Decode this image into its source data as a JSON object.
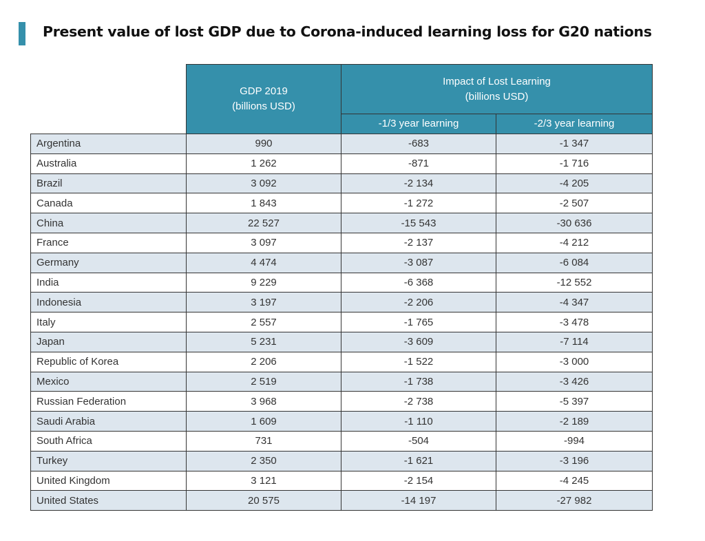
{
  "title": "Present value of lost GDP due to Corona-induced learning loss for G20 nations",
  "colors": {
    "header": "#3590ab",
    "row_alt": "#dde6ee",
    "accent_bar": "#3590ab"
  },
  "chart_data": {
    "type": "table",
    "headers": {
      "gdp": [
        "GDP 2019",
        "(billions USD)"
      ],
      "impact": [
        "Impact of Lost Learning",
        "(billions USD)"
      ],
      "sub": [
        "-1/3 year learning",
        "-2/3 year learning"
      ]
    },
    "rows": [
      [
        "Argentina",
        "990",
        "-683",
        "-1 347"
      ],
      [
        "Australia",
        "1 262",
        "-871",
        "-1 716"
      ],
      [
        "Brazil",
        "3 092",
        "-2 134",
        "-4 205"
      ],
      [
        "Canada",
        "1 843",
        "-1 272",
        "-2 507"
      ],
      [
        "China",
        "22 527",
        "-15 543",
        "-30 636"
      ],
      [
        "France",
        "3 097",
        "-2 137",
        "-4 212"
      ],
      [
        "Germany",
        "4 474",
        "-3 087",
        "-6 084"
      ],
      [
        "India",
        "9 229",
        "-6 368",
        "-12 552"
      ],
      [
        "Indonesia",
        "3 197",
        "-2 206",
        "-4 347"
      ],
      [
        "Italy",
        "2 557",
        "-1 765",
        "-3 478"
      ],
      [
        "Japan",
        "5 231",
        "-3 609",
        "-7 114"
      ],
      [
        "Republic of Korea",
        "2 206",
        "-1 522",
        "-3 000"
      ],
      [
        "Mexico",
        "2 519",
        "-1 738",
        "-3 426"
      ],
      [
        "Russian Federation",
        "3 968",
        "-2 738",
        "-5 397"
      ],
      [
        "Saudi Arabia",
        "1 609",
        "-1 110",
        "-2 189"
      ],
      [
        "South Africa",
        "731",
        "-504",
        "-994"
      ],
      [
        "Turkey",
        "2 350",
        "-1 621",
        "-3 196"
      ],
      [
        "United Kingdom",
        "3 121",
        "-2 154",
        "-4 245"
      ],
      [
        "United States",
        "20 575",
        "-14 197",
        "-27 982"
      ]
    ]
  }
}
